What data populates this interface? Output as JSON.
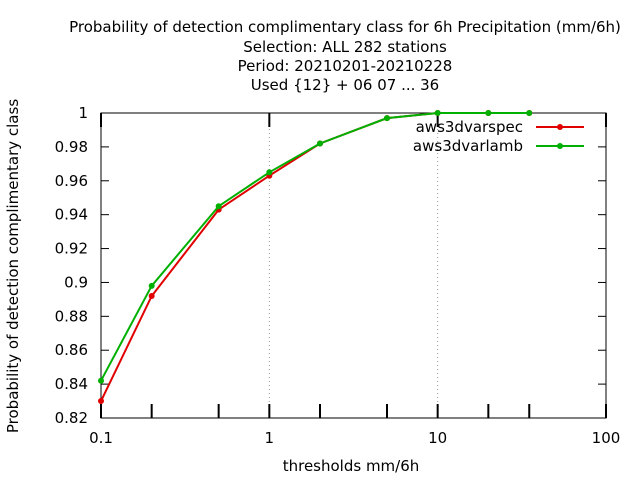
{
  "chart_data": {
    "type": "line",
    "title_lines": [
      "Probability of detection complimentary class  for 6h Precipitation (mm/6h)",
      "Selection: ALL    282 stations",
      "Period: 20210201-20210228",
      "Used {12} + 06 07 ... 36"
    ],
    "xlabel": "thresholds mm/6h",
    "ylabel": "Probability of detection complimentary class",
    "x_scale": "log",
    "xlim": [
      0.1,
      100
    ],
    "ylim": [
      0.82,
      1.0
    ],
    "x_ticks": [
      {
        "value": 0.1,
        "label": "0.1"
      },
      {
        "value": 1,
        "label": "1"
      },
      {
        "value": 10,
        "label": "10"
      },
      {
        "value": 100,
        "label": "100"
      }
    ],
    "x_minor_ticks": [
      0.2,
      0.5,
      2,
      5,
      20,
      35
    ],
    "y_ticks": [
      {
        "value": 0.82,
        "label": "0.82"
      },
      {
        "value": 0.84,
        "label": "0.84"
      },
      {
        "value": 0.86,
        "label": "0.86"
      },
      {
        "value": 0.88,
        "label": "0.88"
      },
      {
        "value": 0.9,
        "label": "0.9"
      },
      {
        "value": 0.92,
        "label": "0.92"
      },
      {
        "value": 0.94,
        "label": "0.94"
      },
      {
        "value": 0.96,
        "label": "0.96"
      },
      {
        "value": 0.98,
        "label": "0.98"
      },
      {
        "value": 1.0,
        "label": "1"
      }
    ],
    "grid": "vertical dotted at major x ticks",
    "legend_position": "top-right",
    "series": [
      {
        "name": "aws3dvarspec",
        "color": "#e00000",
        "x": [
          0.1,
          0.2,
          0.5,
          1,
          2,
          5,
          10,
          20,
          35
        ],
        "y": [
          0.83,
          0.892,
          0.943,
          0.963,
          0.982,
          0.997,
          1.0,
          1.0,
          1.0
        ]
      },
      {
        "name": "aws3dvarlamb",
        "color": "#00b000",
        "x": [
          0.1,
          0.2,
          0.5,
          1,
          2,
          5,
          10,
          20,
          35
        ],
        "y": [
          0.842,
          0.898,
          0.945,
          0.965,
          0.982,
          0.997,
          1.0,
          1.0,
          1.0
        ]
      }
    ]
  }
}
